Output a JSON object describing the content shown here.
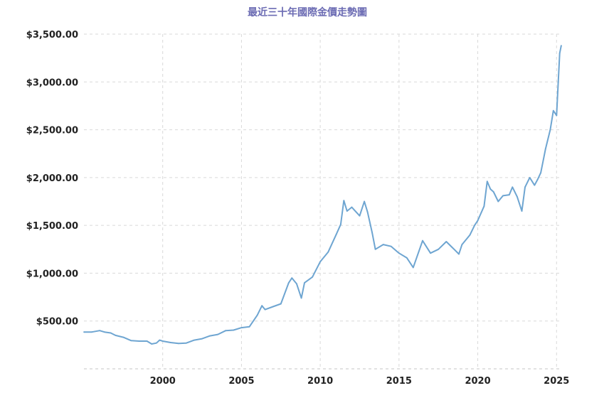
{
  "chart_data": {
    "type": "line",
    "title": "最近三十年國際金價走勢圖",
    "xlabel": "",
    "ylabel": "",
    "xlim": [
      1995,
      2025.35
    ],
    "ylim": [
      0,
      3500
    ],
    "y_ticks": [
      {
        "value": 500,
        "label": "$500.00"
      },
      {
        "value": 1000,
        "label": "$1,000.00"
      },
      {
        "value": 1500,
        "label": "$1,500.00"
      },
      {
        "value": 2000,
        "label": "$2,000.00"
      },
      {
        "value": 2500,
        "label": "$2,500.00"
      },
      {
        "value": 3000,
        "label": "$3,000.00"
      },
      {
        "value": 3500,
        "label": "$3,500.00"
      }
    ],
    "x_ticks": [
      {
        "value": 2000,
        "label": "2000"
      },
      {
        "value": 2005,
        "label": "2005"
      },
      {
        "value": 2010,
        "label": "2010"
      },
      {
        "value": 2015,
        "label": "2015"
      },
      {
        "value": 2020,
        "label": "2020"
      },
      {
        "value": 2025,
        "label": "2025"
      }
    ],
    "grid": true,
    "legend": "none",
    "colors": {
      "line": "#6ea5d1",
      "title": "#6b6bb3",
      "grid": "#d9d9d9"
    },
    "series": [
      {
        "x": [
          1995.0,
          1995.5,
          1996.0,
          1996.3,
          1996.7,
          1997.0,
          1997.5,
          1998.0,
          1998.5,
          1999.0,
          1999.3,
          1999.6,
          1999.8,
          2000.0,
          2000.5,
          2001.0,
          2001.5,
          2002.0,
          2002.5,
          2003.0,
          2003.5,
          2004.0,
          2004.5,
          2005.0,
          2005.5,
          2006.0,
          2006.3,
          2006.5,
          2007.0,
          2007.5,
          2008.0,
          2008.2,
          2008.5,
          2008.8,
          2009.0,
          2009.5,
          2010.0,
          2010.5,
          2011.0,
          2011.3,
          2011.5,
          2011.7,
          2012.0,
          2012.5,
          2012.8,
          2013.0,
          2013.3,
          2013.5,
          2014.0,
          2014.5,
          2015.0,
          2015.5,
          2015.9,
          2016.5,
          2017.0,
          2017.5,
          2018.0,
          2018.5,
          2018.8,
          2019.0,
          2019.5,
          2019.8,
          2020.0,
          2020.4,
          2020.6,
          2020.8,
          2021.0,
          2021.3,
          2021.6,
          2022.0,
          2022.2,
          2022.5,
          2022.8,
          2023.0,
          2023.3,
          2023.6,
          2023.8,
          2024.0,
          2024.3,
          2024.6,
          2024.8,
          2025.0,
          2025.2,
          2025.3
        ],
        "y": [
          385,
          385,
          400,
          385,
          375,
          350,
          330,
          295,
          290,
          290,
          260,
          270,
          300,
          290,
          275,
          265,
          270,
          300,
          315,
          345,
          360,
          400,
          405,
          430,
          440,
          560,
          660,
          620,
          650,
          680,
          900,
          950,
          890,
          740,
          900,
          960,
          1120,
          1220,
          1400,
          1510,
          1760,
          1650,
          1690,
          1600,
          1750,
          1640,
          1420,
          1250,
          1300,
          1280,
          1210,
          1160,
          1060,
          1340,
          1210,
          1250,
          1330,
          1250,
          1200,
          1300,
          1400,
          1500,
          1550,
          1700,
          1960,
          1880,
          1850,
          1750,
          1810,
          1820,
          1900,
          1800,
          1650,
          1900,
          2000,
          1920,
          1980,
          2050,
          2300,
          2500,
          2700,
          2650,
          3300,
          3380
        ]
      }
    ]
  }
}
